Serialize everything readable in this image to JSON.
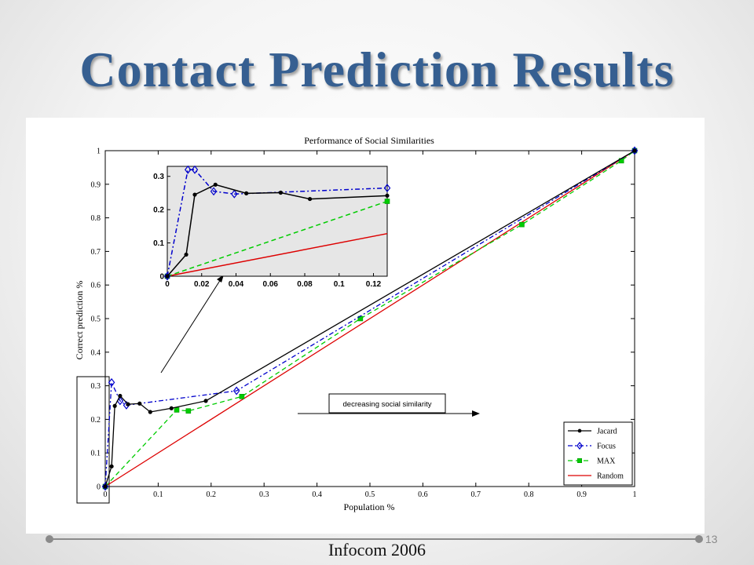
{
  "slide": {
    "title": "Contact Prediction Results",
    "footer": "Infocom 2006",
    "page_number": "13"
  },
  "colors": {
    "title": "#365f91",
    "jacard": "#000000",
    "focus": "#0000cc",
    "max": "#00cc00",
    "random": "#dd0000",
    "inset_bg": "#e6e6e6"
  },
  "chart_data": [
    {
      "id": "main",
      "type": "line",
      "title": "Performance of Social Similarities",
      "xlabel": "Population %",
      "ylabel": "Correct prediction %",
      "xlim": [
        0,
        1
      ],
      "ylim": [
        0,
        1
      ],
      "xticks": [
        "0",
        "0.1",
        "0.2",
        "0.3",
        "0.4",
        "0.5",
        "0.6",
        "0.7",
        "0.8",
        "0.9",
        "1"
      ],
      "yticks": [
        "0",
        "0.1",
        "0.2",
        "0.3",
        "0.4",
        "0.5",
        "0.6",
        "0.7",
        "0.8",
        "0.9",
        "1"
      ],
      "grid": false,
      "legend_position": "bottom-right",
      "annotation": "decreasing social similarity",
      "series": [
        {
          "name": "Jacard",
          "style": "solid",
          "marker": "dot",
          "x": [
            0,
            0.012,
            0.018,
            0.028,
            0.043,
            0.065,
            0.085,
            0.125,
            0.19,
            1.0
          ],
          "y": [
            0,
            0.06,
            0.24,
            0.27,
            0.245,
            0.247,
            0.222,
            0.233,
            0.255,
            1.0
          ]
        },
        {
          "name": "Focus",
          "style": "dashdot",
          "marker": "diamond",
          "x": [
            0,
            0.012,
            0.028,
            0.04,
            0.248,
            1.0
          ],
          "y": [
            0,
            0.31,
            0.255,
            0.242,
            0.285,
            1.0
          ]
        },
        {
          "name": "MAX",
          "style": "dashed",
          "marker": "square",
          "x": [
            0,
            0.135,
            0.157,
            0.258,
            0.482,
            0.787,
            0.975,
            1.0
          ],
          "y": [
            0,
            0.228,
            0.225,
            0.268,
            0.5,
            0.78,
            0.97,
            1.0
          ]
        },
        {
          "name": "Random",
          "style": "solid",
          "marker": "none",
          "x": [
            0,
            1
          ],
          "y": [
            0,
            1
          ]
        }
      ]
    },
    {
      "id": "inset",
      "type": "line",
      "xlim": [
        0,
        0.128
      ],
      "ylim": [
        0,
        0.33
      ],
      "xticks": [
        "0",
        "0.02",
        "0.04",
        "0.06",
        "0.08",
        "0.1",
        "0.12"
      ],
      "yticks": [
        "0",
        "0.1",
        "0.2",
        "0.3"
      ],
      "series": [
        {
          "name": "Jacard",
          "x": [
            0,
            0.011,
            0.016,
            0.028,
            0.046,
            0.066,
            0.083,
            0.128
          ],
          "y": [
            0,
            0.065,
            0.245,
            0.275,
            0.249,
            0.251,
            0.232,
            0.242
          ]
        },
        {
          "name": "Focus",
          "x": [
            0,
            0.012,
            0.016,
            0.027,
            0.039,
            0.128
          ],
          "y": [
            0,
            0.32,
            0.32,
            0.255,
            0.247,
            0.265
          ]
        },
        {
          "name": "MAX",
          "x": [
            0,
            0.128
          ],
          "y": [
            0,
            0.225
          ]
        },
        {
          "name": "Random",
          "x": [
            0,
            0.128
          ],
          "y": [
            0,
            0.128
          ]
        }
      ]
    }
  ]
}
